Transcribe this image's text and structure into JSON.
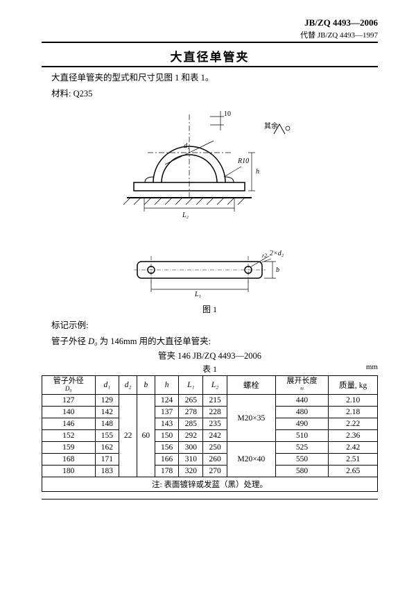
{
  "header": {
    "standard_id": "JB/ZQ 4493—2006",
    "replaces": "代替 JB/ZQ 4493—1997"
  },
  "title": "大直径单管夹",
  "intro": "大直径单管夹的型式和尺寸见图 1 和表 1。",
  "material": "材料: Q235",
  "figure": {
    "caption": "图 1",
    "dim_t": "10",
    "dim_d1": "d₁",
    "dim_r": "R10",
    "dim_h": "h",
    "dim_L2": "L₂",
    "dim_holes": "2×d₂",
    "dim_r2": "r2",
    "dim_b": "b",
    "dim_L1": "L₁",
    "surface_label": "其余"
  },
  "marking": {
    "heading": "标记示例:",
    "desc_pre": "管子外径 ",
    "desc_var": "D₀",
    "desc_post": " 为 146mm 用的大直径单管夹:",
    "designation": "管夹  146   JB/ZQ 4493—2006"
  },
  "table": {
    "caption": "表 1",
    "unit": "mm",
    "columns": {
      "D0_top": "管子外径",
      "D0_bot": "D₀",
      "d1": "d₁",
      "d2": "d₂",
      "b": "b",
      "h": "h",
      "L1": "L₁",
      "L2": "L₂",
      "bolt": "螺栓",
      "len_top": "展开长度",
      "len_bot": "≈",
      "mass": "质量, kg"
    },
    "rows": [
      {
        "D0": "127",
        "d1": "129",
        "h": "124",
        "L1": "265",
        "L2": "215",
        "len": "440",
        "mass": "2.10"
      },
      {
        "D0": "140",
        "d1": "142",
        "h": "137",
        "L1": "278",
        "L2": "228",
        "len": "480",
        "mass": "2.18"
      },
      {
        "D0": "146",
        "d1": "148",
        "h": "143",
        "L1": "285",
        "L2": "235",
        "len": "490",
        "mass": "2.22"
      },
      {
        "D0": "152",
        "d1": "155",
        "h": "150",
        "L1": "292",
        "L2": "242",
        "len": "510",
        "mass": "2.36"
      },
      {
        "D0": "159",
        "d1": "162",
        "h": "156",
        "L1": "300",
        "L2": "250",
        "len": "525",
        "mass": "2.42"
      },
      {
        "D0": "168",
        "d1": "171",
        "h": "166",
        "L1": "310",
        "L2": "260",
        "len": "550",
        "mass": "2.51"
      },
      {
        "D0": "180",
        "d1": "183",
        "h": "178",
        "L1": "320",
        "L2": "270",
        "len": "580",
        "mass": "2.65"
      }
    ],
    "d2_merged": "22",
    "b_merged": "60",
    "bolt_top": "M20×35",
    "bolt_bot": "M20×40",
    "note": "注: 表面镀锌或发蓝（黑）处理。",
    "style": {
      "border_color": "#000000",
      "font_size_pt": 11.5,
      "header_bg": "#ffffff"
    }
  }
}
